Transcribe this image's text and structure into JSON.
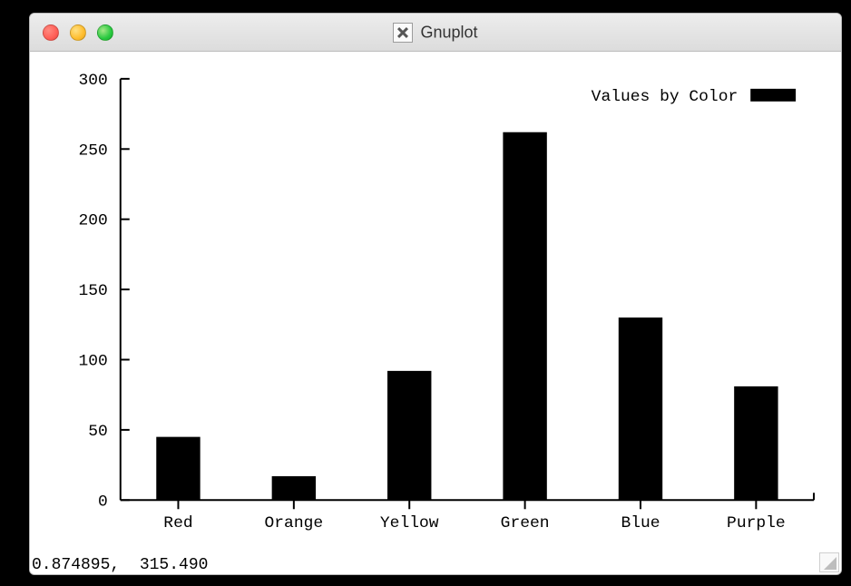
{
  "window": {
    "title": "Gnuplot",
    "platform_icon": "xorg-icon"
  },
  "status": {
    "coords_text": "0.874895,  315.490"
  },
  "chart": {
    "type": "bar",
    "legend_label": "Values by Color",
    "categories": [
      "Red",
      "Orange",
      "Yellow",
      "Green",
      "Blue",
      "Purple"
    ],
    "values": [
      45,
      17,
      92,
      262,
      130,
      81
    ],
    "ylim": [
      0,
      300
    ],
    "ytick_step": 50,
    "yticks": [
      0,
      50,
      100,
      150,
      200,
      250,
      300
    ],
    "bar_color": "#000000",
    "axis_color": "#000000",
    "background_color": "#ffffff",
    "bar_width": 0.38,
    "tick_fontsize": 18,
    "legend_fontsize": 18,
    "font_family": "Andale Mono"
  }
}
